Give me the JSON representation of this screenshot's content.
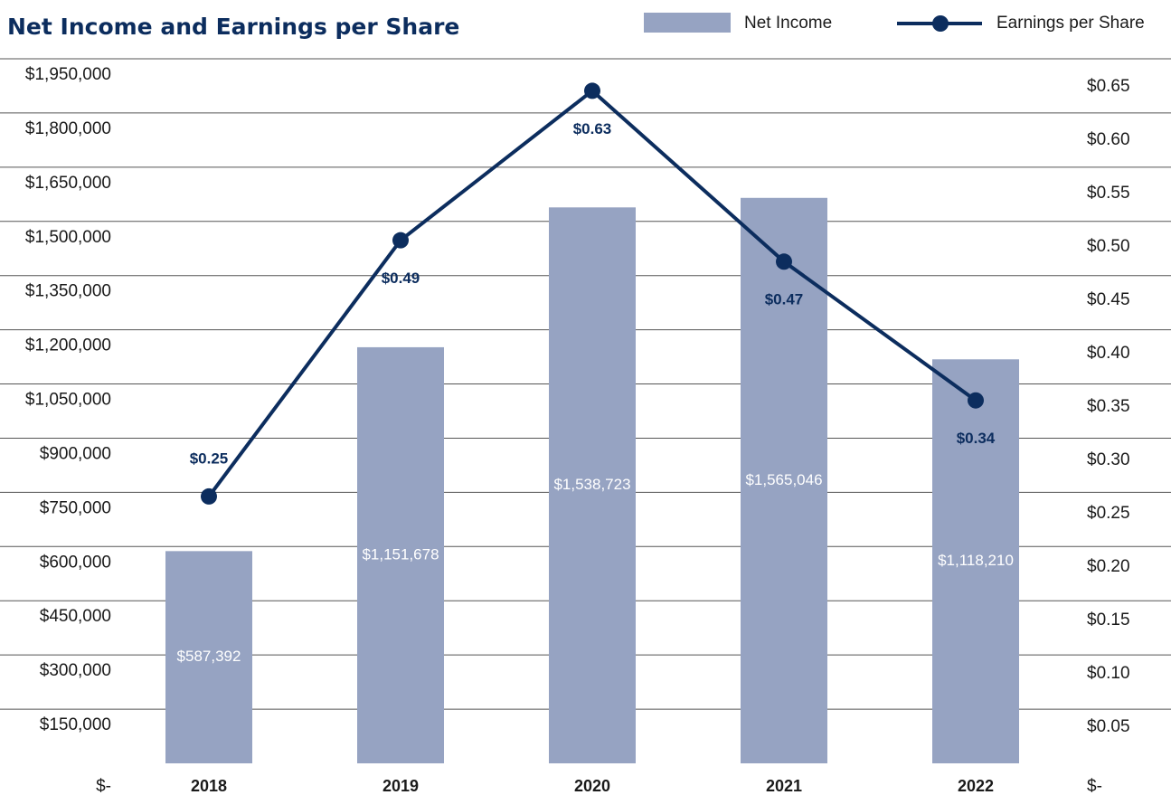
{
  "chart_data": {
    "type": "bar_line",
    "title": "Net Income and Earnings per Share",
    "categories": [
      "2018",
      "2019",
      "2020",
      "2021",
      "2022"
    ],
    "series": [
      {
        "name": "Net Income",
        "type": "bar",
        "color": "#96a3c2",
        "values": [
          587392,
          1151678,
          1538723,
          1565046,
          1118210
        ],
        "value_labels": [
          "$587,392",
          "$1,151,678",
          "$1,538,723",
          "$1,565,046",
          "$1,118,210"
        ]
      },
      {
        "name": "Earnings per Share",
        "type": "line",
        "axis": "y2",
        "color": "#0c2d5e",
        "values": [
          0.25,
          0.49,
          0.63,
          0.47,
          0.34
        ],
        "value_labels": [
          "$0.25",
          "$0.49",
          "$0.63",
          "$0.47",
          "$0.34"
        ]
      }
    ],
    "ylim": [
      0,
      1950000
    ],
    "yticks": [
      {
        "value": 0,
        "label": "$-"
      },
      {
        "value": 150000,
        "label": "$150,000"
      },
      {
        "value": 300000,
        "label": "$300,000"
      },
      {
        "value": 450000,
        "label": "$450,000"
      },
      {
        "value": 600000,
        "label": "$600,000"
      },
      {
        "value": 750000,
        "label": "$750,000"
      },
      {
        "value": 900000,
        "label": "$900,000"
      },
      {
        "value": 1050000,
        "label": "$1,050,000"
      },
      {
        "value": 1200000,
        "label": "$1,200,000"
      },
      {
        "value": 1350000,
        "label": "$1,350,000"
      },
      {
        "value": 1500000,
        "label": "$1,500,000"
      },
      {
        "value": 1650000,
        "label": "$1,650,000"
      },
      {
        "value": 1800000,
        "label": "$1,800,000"
      },
      {
        "value": 1950000,
        "label": "$1,950,000"
      }
    ],
    "y2lim": [
      0,
      0.66
    ],
    "y2ticks": [
      {
        "value": 0,
        "label": "$-"
      },
      {
        "value": 0.05,
        "label": "$0.05"
      },
      {
        "value": 0.1,
        "label": "$0.10"
      },
      {
        "value": 0.15,
        "label": "$0.15"
      },
      {
        "value": 0.2,
        "label": "$0.20"
      },
      {
        "value": 0.25,
        "label": "$0.25"
      },
      {
        "value": 0.3,
        "label": "$0.30"
      },
      {
        "value": 0.35,
        "label": "$0.35"
      },
      {
        "value": 0.4,
        "label": "$0.40"
      },
      {
        "value": 0.45,
        "label": "$0.45"
      },
      {
        "value": 0.5,
        "label": "$0.50"
      },
      {
        "value": 0.55,
        "label": "$0.55"
      },
      {
        "value": 0.6,
        "label": "$0.60"
      },
      {
        "value": 0.65,
        "label": "$0.65"
      }
    ],
    "grid": true,
    "legend": "top-right"
  }
}
